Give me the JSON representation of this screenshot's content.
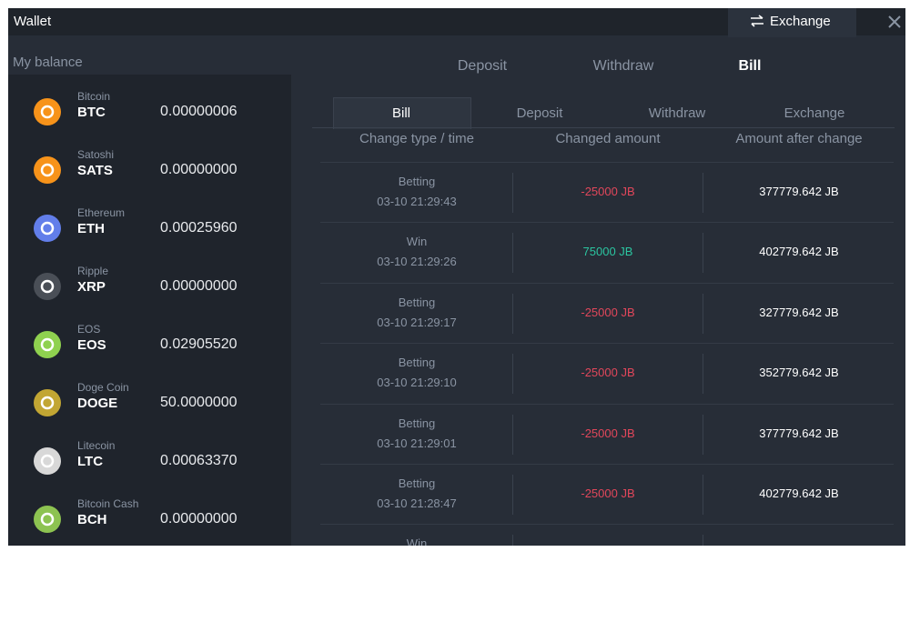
{
  "header": {
    "title": "Wallet",
    "exchange_button": "Exchange"
  },
  "balance": {
    "label": "My balance",
    "coins": [
      {
        "name": "Bitcoin",
        "symbol": "BTC",
        "amount": "0.00000006",
        "color": "#f7931a"
      },
      {
        "name": "Satoshi",
        "symbol": "SATS",
        "amount": "0.00000000",
        "color": "#f7931a"
      },
      {
        "name": "Ethereum",
        "symbol": "ETH",
        "amount": "0.00025960",
        "color": "#627eea"
      },
      {
        "name": "Ripple",
        "symbol": "XRP",
        "amount": "0.00000000",
        "color": "#4a4f57"
      },
      {
        "name": "EOS",
        "symbol": "EOS",
        "amount": "0.02905520",
        "color": "#8fd14f"
      },
      {
        "name": "Doge Coin",
        "symbol": "DOGE",
        "amount": "50.0000000",
        "color": "#c2a633"
      },
      {
        "name": "Litecoin",
        "symbol": "LTC",
        "amount": "0.00063370",
        "color": "#d8d8d8"
      },
      {
        "name": "Bitcoin Cash",
        "symbol": "BCH",
        "amount": "0.00000000",
        "color": "#8dc351"
      }
    ]
  },
  "main_tabs": [
    "Deposit",
    "Withdraw",
    "Bill"
  ],
  "sub_tabs": [
    "Bill",
    "Deposit",
    "Withdraw",
    "Exchange"
  ],
  "table": {
    "columns": [
      "Change type / time",
      "Changed amount",
      "Amount after change"
    ],
    "rows": [
      {
        "type": "Betting",
        "time": "03-10 21:29:43",
        "amount": "-25000 JB",
        "color": "#e2475b",
        "after": "377779.642 JB"
      },
      {
        "type": "Win",
        "time": "03-10 21:29:26",
        "amount": "75000 JB",
        "color": "#2bc5a0",
        "after": "402779.642 JB"
      },
      {
        "type": "Betting",
        "time": "03-10 21:29:17",
        "amount": "-25000 JB",
        "color": "#e2475b",
        "after": "327779.642 JB"
      },
      {
        "type": "Betting",
        "time": "03-10 21:29:10",
        "amount": "-25000 JB",
        "color": "#e2475b",
        "after": "352779.642 JB"
      },
      {
        "type": "Betting",
        "time": "03-10 21:29:01",
        "amount": "-25000 JB",
        "color": "#e2475b",
        "after": "377779.642 JB"
      },
      {
        "type": "Betting",
        "time": "03-10 21:28:47",
        "amount": "-25000 JB",
        "color": "#e2475b",
        "after": "402779.642 JB"
      },
      {
        "type": "Win"
      }
    ]
  }
}
